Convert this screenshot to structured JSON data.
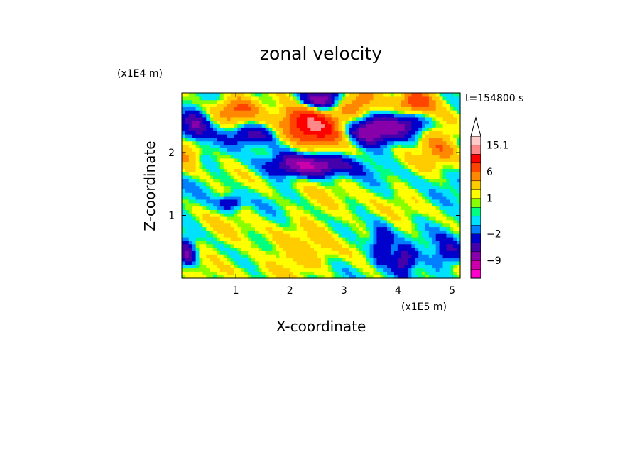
{
  "chart_data": {
    "type": "heatmap",
    "title": "zonal velocity",
    "xlabel": "X-coordinate",
    "ylabel": "Z-coordinate",
    "x_multiplier": "(x1E5 m)",
    "y_multiplier": "(x1E4 m)",
    "annotation": "t=154800 s",
    "xlim": [
      0,
      5.15
    ],
    "ylim": [
      0,
      2.95
    ],
    "x_ticks": [
      1,
      2,
      3,
      4,
      5
    ],
    "y_ticks": [
      1,
      2
    ],
    "colorbar": {
      "levels": [
        -15,
        -12,
        -9,
        -6,
        -4,
        -2,
        -1,
        0,
        0.5,
        1,
        2,
        4,
        6,
        9,
        12,
        15.1
      ],
      "colors": [
        "#ff00cc",
        "#cc00aa",
        "#8800aa",
        "#4400aa",
        "#0000cc",
        "#0080ff",
        "#00e0ff",
        "#00ff80",
        "#88ff00",
        "#ffff00",
        "#ffcc00",
        "#ff8800",
        "#ff4400",
        "#ff0000",
        "#ff8888",
        "#ffcccc"
      ],
      "tick_labels": [
        {
          "value": 15.1,
          "label": "15.1"
        },
        {
          "value": 6,
          "label": "6"
        },
        {
          "value": 1,
          "label": "1"
        },
        {
          "value": -2,
          "label": "−2"
        },
        {
          "value": -9,
          "label": "−9"
        }
      ],
      "arrow": "top"
    },
    "field_features": [
      {
        "x": 2.5,
        "z": 2.4,
        "value": 10,
        "sigma_x": 0.35,
        "sigma_z": 0.2
      },
      {
        "x": 2.2,
        "z": 2.6,
        "value": 6,
        "sigma_x": 0.3,
        "sigma_z": 0.2
      },
      {
        "x": 4.3,
        "z": 2.8,
        "value": 8,
        "sigma_x": 0.25,
        "sigma_z": 0.15
      },
      {
        "x": 0.1,
        "z": 2.1,
        "value": 6,
        "sigma_x": 0.2,
        "sigma_z": 0.2
      },
      {
        "x": 1.0,
        "z": 2.7,
        "value": 7,
        "sigma_x": 0.3,
        "sigma_z": 0.15
      },
      {
        "x": 3.2,
        "z": 2.8,
        "value": 5,
        "sigma_x": 0.3,
        "sigma_z": 0.15
      },
      {
        "x": 4.8,
        "z": 2.1,
        "value": 5,
        "sigma_x": 0.25,
        "sigma_z": 0.2
      },
      {
        "x": 2.6,
        "z": 2.85,
        "value": -10,
        "sigma_x": 0.3,
        "sigma_z": 0.12
      },
      {
        "x": 2.4,
        "z": 1.8,
        "value": -9,
        "sigma_x": 0.5,
        "sigma_z": 0.12
      },
      {
        "x": 3.5,
        "z": 2.35,
        "value": -9,
        "sigma_x": 0.3,
        "sigma_z": 0.15
      },
      {
        "x": 0.2,
        "z": 2.4,
        "value": -8,
        "sigma_x": 0.2,
        "sigma_z": 0.2
      },
      {
        "x": 1.3,
        "z": 2.3,
        "value": -6,
        "sigma_x": 0.3,
        "sigma_z": 0.12
      },
      {
        "x": 4.2,
        "z": 2.5,
        "value": -6,
        "sigma_x": 0.25,
        "sigma_z": 0.15
      },
      {
        "x": 0.9,
        "z": 1.2,
        "value": -5,
        "sigma_x": 0.15,
        "sigma_z": 0.08
      },
      {
        "x": 3.7,
        "z": 0.5,
        "value": -6,
        "sigma_x": 0.15,
        "sigma_z": 0.2
      },
      {
        "x": 4.1,
        "z": 0.3,
        "value": -7,
        "sigma_x": 0.15,
        "sigma_z": 0.15
      },
      {
        "x": 0.1,
        "z": 0.4,
        "value": -6,
        "sigma_x": 0.1,
        "sigma_z": 0.15
      },
      {
        "x": 4.95,
        "z": 0.4,
        "value": -4,
        "sigma_x": 0.2,
        "sigma_z": 0.15
      },
      {
        "x": 1.3,
        "z": 0.6,
        "value": 0.8,
        "sigma_x": 0.8,
        "sigma_z": 0.4
      },
      {
        "x": 3.0,
        "z": 1.0,
        "value": 1,
        "sigma_x": 0.7,
        "sigma_z": 0.4
      },
      {
        "x": 2.2,
        "z": 0.3,
        "value": 2,
        "sigma_x": 0.6,
        "sigma_z": 0.2
      }
    ]
  }
}
